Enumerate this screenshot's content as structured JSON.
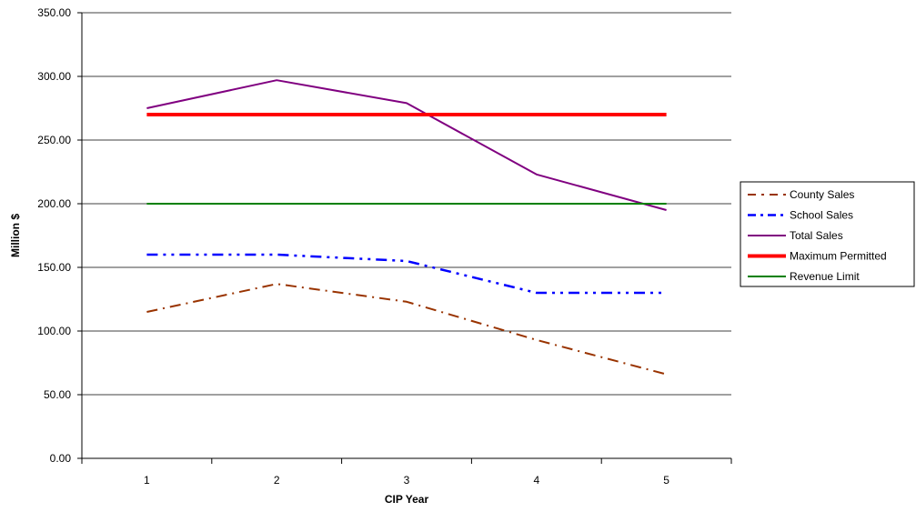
{
  "chart_data": {
    "type": "line",
    "title": "",
    "xlabel": "CIP Year",
    "ylabel": "Million $",
    "x": [
      1,
      2,
      3,
      4,
      5
    ],
    "ylim": [
      0,
      350
    ],
    "yticks": [
      0,
      50,
      100,
      150,
      200,
      250,
      300,
      350
    ],
    "ytick_labels": [
      "0.00",
      "50.00",
      "100.00",
      "150.00",
      "200.00",
      "250.00",
      "300.00",
      "350.00"
    ],
    "xtick_labels": [
      "1",
      "2",
      "3",
      "4",
      "5"
    ],
    "grid": "horizontal",
    "legend_position": "right",
    "series": [
      {
        "name": "County Sales",
        "values": [
          115,
          137,
          123,
          93,
          66
        ],
        "color": "#993300",
        "dash": "dash-dot"
      },
      {
        "name": "School Sales",
        "values": [
          160,
          160,
          155,
          130,
          130
        ],
        "color": "#0000ff",
        "dash": "dash-dot-dot"
      },
      {
        "name": "Total Sales",
        "values": [
          275,
          297,
          279,
          223,
          195
        ],
        "color": "#800080",
        "dash": "solid"
      },
      {
        "name": "Maximum Permitted",
        "values": [
          270,
          270,
          270,
          270,
          270
        ],
        "color": "#ff0000",
        "dash": "solid-thick"
      },
      {
        "name": "Revenue Limit",
        "values": [
          200,
          200,
          200,
          200,
          200
        ],
        "color": "#008000",
        "dash": "solid"
      }
    ]
  }
}
